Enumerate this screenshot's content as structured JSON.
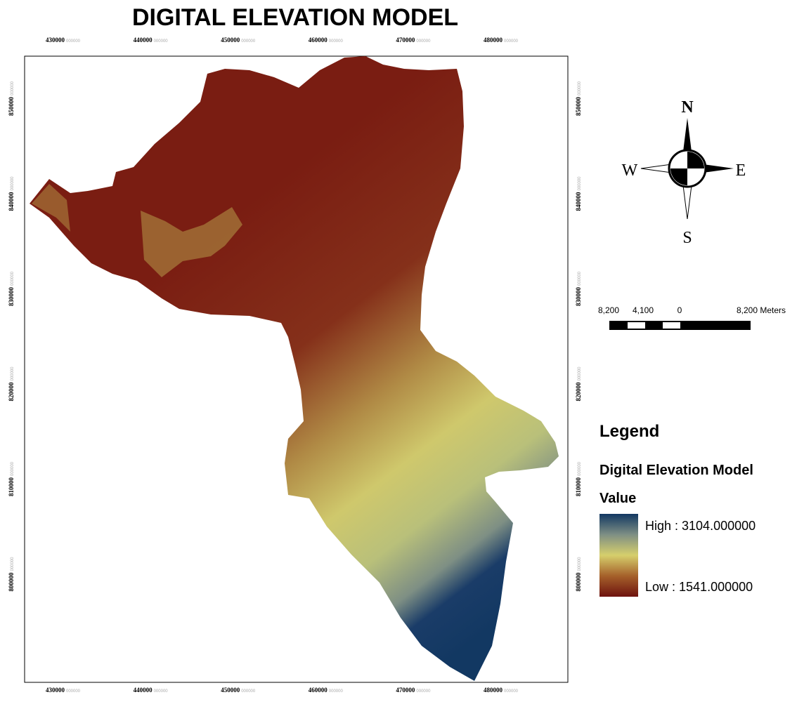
{
  "title": "DIGITAL ELEVATION MODEL",
  "x_ticks": [
    {
      "label": "430000",
      "suffix": "000000"
    },
    {
      "label": "440000",
      "suffix": "000000"
    },
    {
      "label": "450000",
      "suffix": "000000"
    },
    {
      "label": "460000",
      "suffix": "000000"
    },
    {
      "label": "470000",
      "suffix": "000000"
    },
    {
      "label": "480000",
      "suffix": "000000"
    }
  ],
  "y_ticks": [
    {
      "label": "850000",
      "suffix": "000000"
    },
    {
      "label": "840000",
      "suffix": "000000"
    },
    {
      "label": "830000",
      "suffix": "000000"
    },
    {
      "label": "820000",
      "suffix": "000000"
    },
    {
      "label": "810000",
      "suffix": "000000"
    },
    {
      "label": "800000",
      "suffix": "000000"
    }
  ],
  "north_arrow": {
    "n": "N",
    "e": "E",
    "s": "S",
    "w": "W"
  },
  "scale_bar": {
    "labels": [
      "8,200",
      "4,100",
      "0",
      "8,200 Meters"
    ]
  },
  "legend": {
    "title": "Legend",
    "layer": "Digital Elevation Model",
    "field": "Value",
    "high": "High : 3104.000000",
    "low": "Low : 1541.000000"
  }
}
